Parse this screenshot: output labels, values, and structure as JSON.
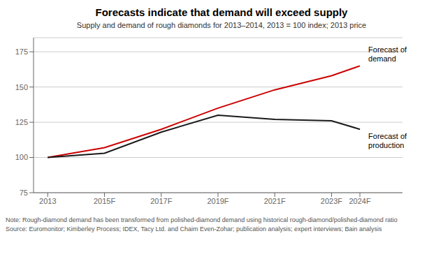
{
  "chart_data": {
    "type": "line",
    "title": "Forecasts indicate that demand will exceed supply",
    "subtitle": "Supply and demand of rough diamonds for 2013–2014, 2013 = 100 index; 2013 price",
    "note": "Note:  Rough-diamond demand has been transformed from polished-diamond demand using historical rough-diamond/polished-diamond ratio",
    "source": "Source:  Euromonitor; Kimberley Process; IDEX, Tacy Ltd. and Chaim Even-Zohar; publication analysis; expert interviews; Bain analysis",
    "x": [
      2013,
      2015,
      2017,
      2019,
      2021,
      2023,
      2024
    ],
    "xlim": [
      2012.5,
      2025.5
    ],
    "xticks": [
      2013,
      {
        "value": 2015,
        "label": "2015F"
      },
      {
        "value": 2017,
        "label": "2017F"
      },
      {
        "value": 2019,
        "label": "2019F"
      },
      {
        "value": 2021,
        "label": "2021F"
      },
      {
        "value": 2023,
        "label": "2023F"
      },
      {
        "value": 2024,
        "label": "2024F"
      }
    ],
    "ylim": [
      75,
      185
    ],
    "yticks": [
      75,
      100,
      125,
      150,
      175
    ],
    "grid": true,
    "series": [
      {
        "name": "Forecast of\ndemand",
        "color": "#cc0000",
        "values": [
          100,
          107,
          120,
          135,
          148,
          158,
          165
        ]
      },
      {
        "name": "Forecast of\nproduction",
        "color": "#1a1a1a",
        "values": [
          100,
          103,
          118,
          130,
          127,
          126,
          120
        ]
      }
    ]
  }
}
